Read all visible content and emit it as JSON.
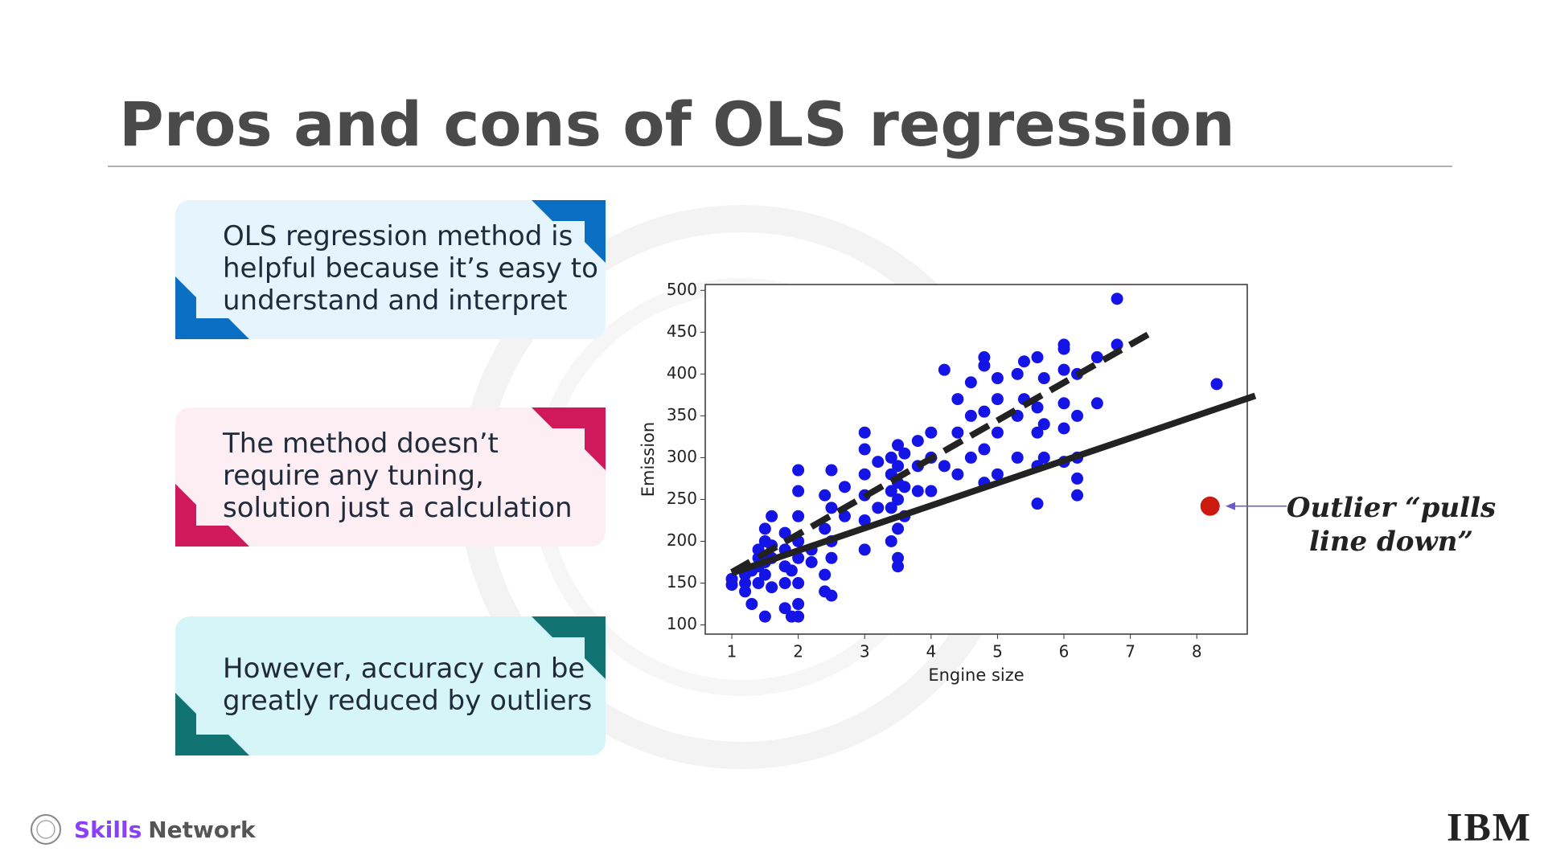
{
  "title": "Pros and cons of OLS regression",
  "cards": [
    {
      "lines": [
        "OLS regression method is",
        "helpful because it’s easy to",
        "understand and interpret"
      ],
      "fill": "#e5f4fd",
      "accent": "#0a6fc2"
    },
    {
      "lines": [
        "The method doesn’t",
        "require any tuning,",
        "solution just a calculation"
      ],
      "fill": "#fdeef3",
      "accent": "#d0195a"
    },
    {
      "lines": [
        "However, accuracy can be",
        "greatly reduced by outliers"
      ],
      "fill": "#d6f5f8",
      "accent": "#127373"
    }
  ],
  "chart_data": {
    "type": "scatter",
    "xlabel": "Engine size",
    "ylabel": "Emission",
    "xlim": [
      0.6,
      8.76
    ],
    "ylim": [
      89,
      507
    ],
    "xticks": [
      1,
      2,
      3,
      4,
      5,
      6,
      7,
      8
    ],
    "yticks": [
      100,
      150,
      200,
      250,
      300,
      350,
      400,
      450,
      500
    ],
    "points": {
      "color": "#1414e6",
      "x": [
        1.0,
        1.0,
        1.2,
        1.2,
        1.2,
        1.3,
        1.3,
        1.4,
        1.4,
        1.4,
        1.4,
        1.5,
        1.5,
        1.5,
        1.5,
        1.5,
        1.6,
        1.6,
        1.6,
        1.6,
        1.8,
        1.8,
        1.8,
        1.8,
        1.8,
        1.9,
        1.9,
        2.0,
        2.0,
        2.0,
        2.0,
        2.0,
        2.0,
        2.0,
        2.0,
        2.2,
        2.2,
        2.4,
        2.4,
        2.4,
        2.4,
        2.5,
        2.5,
        2.5,
        2.5,
        2.5,
        2.7,
        2.7,
        3.0,
        3.0,
        3.0,
        3.0,
        3.0,
        3.0,
        3.2,
        3.2,
        3.4,
        3.4,
        3.4,
        3.4,
        3.4,
        3.5,
        3.5,
        3.5,
        3.5,
        3.5,
        3.5,
        3.5,
        3.6,
        3.6,
        3.6,
        3.8,
        3.8,
        3.8,
        4.0,
        4.0,
        4.0,
        4.2,
        4.2,
        4.4,
        4.4,
        4.4,
        4.6,
        4.6,
        4.6,
        4.8,
        4.8,
        4.8,
        4.8,
        4.8,
        5.0,
        5.0,
        5.0,
        5.0,
        5.3,
        5.3,
        5.3,
        5.4,
        5.4,
        5.6,
        5.6,
        5.6,
        5.6,
        5.6,
        5.7,
        5.7,
        5.7,
        6.0,
        6.0,
        6.0,
        6.0,
        6.0,
        6.0,
        6.2,
        6.2,
        6.2,
        6.2,
        6.2,
        6.5,
        6.5,
        6.8,
        6.8,
        8.3
      ],
      "y": [
        148,
        155,
        140,
        150,
        160,
        165,
        125,
        170,
        180,
        190,
        150,
        110,
        160,
        200,
        215,
        175,
        180,
        230,
        145,
        195,
        150,
        170,
        190,
        210,
        120,
        110,
        165,
        110,
        125,
        180,
        200,
        230,
        260,
        285,
        150,
        175,
        190,
        140,
        160,
        215,
        255,
        135,
        200,
        240,
        285,
        180,
        230,
        265,
        190,
        225,
        255,
        280,
        310,
        330,
        240,
        295,
        200,
        240,
        260,
        280,
        300,
        170,
        180,
        215,
        250,
        270,
        290,
        315,
        230,
        265,
        305,
        260,
        290,
        320,
        260,
        300,
        330,
        405,
        290,
        280,
        330,
        370,
        300,
        350,
        390,
        270,
        310,
        355,
        410,
        420,
        280,
        330,
        370,
        395,
        300,
        350,
        400,
        370,
        415,
        245,
        290,
        330,
        360,
        420,
        300,
        340,
        395,
        295,
        335,
        365,
        405,
        430,
        435,
        255,
        275,
        300,
        350,
        400,
        365,
        420,
        435,
        490,
        388
      ]
    },
    "outlier": {
      "x": 8.2,
      "y": 242,
      "color": "#cc1a10"
    },
    "lines": [
      {
        "x": [
          1,
          7.35
        ],
        "values": [
          163,
          451
        ],
        "dashed": true,
        "color": "#222222"
      },
      {
        "x": [
          1,
          8.88
        ],
        "values": [
          162,
          374
        ],
        "dashed": false,
        "color": "#222222"
      }
    ]
  },
  "annotation": {
    "lines": [
      "Outlier “pulls",
      "line down”"
    ],
    "arrow_color": "#6a5acd"
  },
  "footer": {
    "brand": "Skills",
    "brand_rest": "Network",
    "logo": "IBM"
  }
}
